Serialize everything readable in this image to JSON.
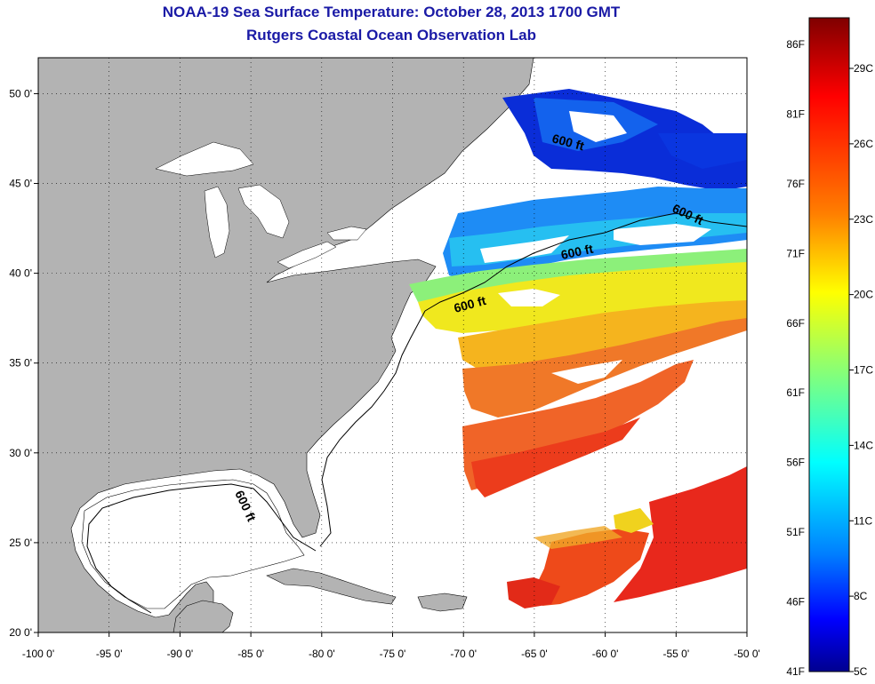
{
  "title": "NOAA-19 Sea Surface Temperature:  October 28, 2013 1700 GMT",
  "subtitle": "Rutgers Coastal Ocean Observation Lab",
  "map": {
    "lon_range": [
      -100,
      -50
    ],
    "lat_range": [
      20,
      52
    ],
    "lon_ticks": [
      "-100 0'",
      "-95 0'",
      "-90 0'",
      "-85 0'",
      "-80 0'",
      "-75 0'",
      "-70 0'",
      "-65 0'",
      "-60 0'",
      "-55 0'",
      "-50 0'"
    ],
    "lat_ticks": [
      "20 0'",
      "25 0'",
      "30 0'",
      "35 0'",
      "40 0'",
      "45 0'",
      "50 0'"
    ],
    "contour_label": "600 ft",
    "land_color": "#b3b3b3",
    "ocean_nodata_color": "#ffffff"
  },
  "colorbar": {
    "f_labels": [
      "86F",
      "81F",
      "76F",
      "71F",
      "66F",
      "61F",
      "56F",
      "51F",
      "46F",
      "41F"
    ],
    "c_labels": [
      "29C",
      "26C",
      "23C",
      "20C",
      "17C",
      "14C",
      "11C",
      "8C",
      "5C"
    ],
    "colors": [
      "#7f0000",
      "#ff0000",
      "#ff7f00",
      "#ffff00",
      "#7fff7f",
      "#00ffff",
      "#007fff",
      "#0000ff",
      "#00008f"
    ]
  }
}
